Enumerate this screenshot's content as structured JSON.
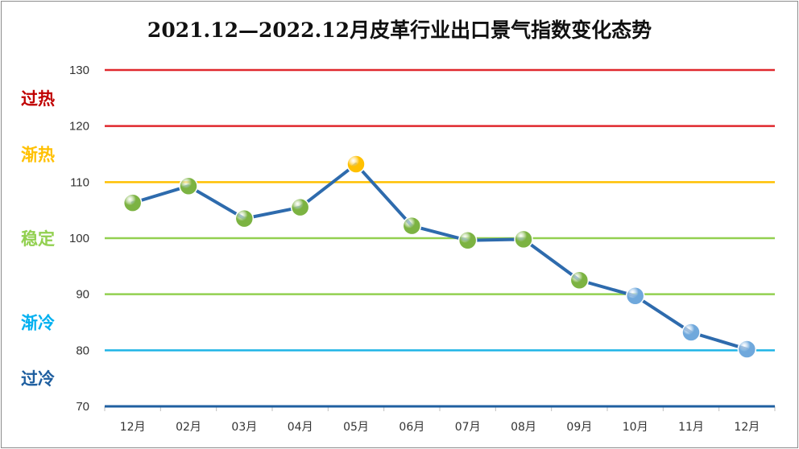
{
  "chart_data": {
    "type": "line",
    "title": "2021.12—2022.12月皮革行业出口景气指数变化态势",
    "categories": [
      "12月",
      "02月",
      "03月",
      "04月",
      "05月",
      "06月",
      "07月",
      "08月",
      "09月",
      "10月",
      "11月",
      "12月"
    ],
    "series": [
      {
        "values": [
          106.3,
          109.3,
          103.5,
          105.5,
          113.2,
          102.2,
          99.6,
          99.8,
          92.5,
          89.7,
          83.2,
          80.2
        ]
      }
    ],
    "ylim": [
      70,
      130
    ],
    "yticks": [
      70,
      80,
      90,
      100,
      110,
      120,
      130
    ],
    "xlabel": "",
    "ylabel": "",
    "legend": "none",
    "reference_lines": [
      {
        "value": 130,
        "color": "#e0282d"
      },
      {
        "value": 120,
        "color": "#e0282d"
      },
      {
        "value": 110,
        "color": "#ffc000"
      },
      {
        "value": 100,
        "color": "#92d050"
      },
      {
        "value": 90,
        "color": "#92d050"
      },
      {
        "value": 80,
        "color": "#1fb4e6"
      },
      {
        "value": 70,
        "color": "#1f5fa0"
      }
    ],
    "zones": [
      {
        "label": "过热",
        "color": "#c00000",
        "range": [
          120,
          130
        ]
      },
      {
        "label": "渐热",
        "color": "#ffc000",
        "range": [
          110,
          120
        ]
      },
      {
        "label": "稳定",
        "color": "#92d050",
        "range": [
          90,
          110
        ]
      },
      {
        "label": "渐冷",
        "color": "#00b0f0",
        "range": [
          80,
          90
        ]
      },
      {
        "label": "过冷",
        "color": "#1f5fa0",
        "range": [
          70,
          80
        ]
      }
    ],
    "marker_colors": {
      "overheat": "#c00000",
      "warming": "#ffc000",
      "stable": "#7cb342",
      "cooling": "#6fa8dc"
    },
    "line_color": "#2e6bad"
  }
}
